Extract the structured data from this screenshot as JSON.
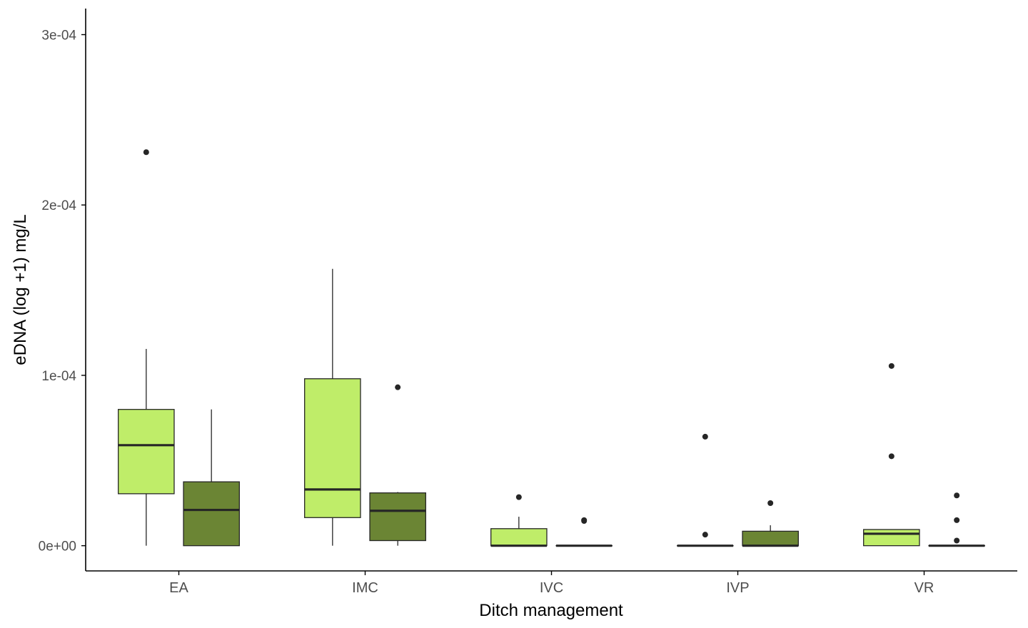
{
  "chart_data": {
    "type": "boxplot",
    "xlabel": "Ditch management",
    "ylabel": "eDNA  (log +1) mg/L",
    "ylim": [
      -1.48e-05,
      0.0003153
    ],
    "y_ticks": [
      0,
      0.0001,
      0.0002,
      0.0003
    ],
    "y_tick_labels": [
      "0e+00",
      "1e-04",
      "2e-04",
      "3e-04"
    ],
    "categories": [
      "EA",
      "IMC",
      "IVC",
      "IVP",
      "VR"
    ],
    "grid": false,
    "legend": "none",
    "colors": {
      "light_fill": "#bfed69",
      "dark_fill": "#6b8534",
      "line": "#262626",
      "axis": "#000000"
    },
    "series": [
      {
        "fill": "#bfed69",
        "boxes": [
          {
            "category": "EA",
            "whisker_low": 0.0,
            "q1": 3.05e-05,
            "median": 5.9e-05,
            "q3": 8e-05,
            "whisker_high": 0.0001155,
            "outliers": [
              0.000231
            ]
          },
          {
            "category": "IMC",
            "whisker_low": 0.0,
            "q1": 1.65e-05,
            "median": 3.3e-05,
            "q3": 9.8e-05,
            "whisker_high": 0.0001625,
            "outliers": []
          },
          {
            "category": "IVC",
            "whisker_low": 0.0,
            "q1": 0.0,
            "median": 0.0,
            "q3": 1e-05,
            "whisker_high": 1.7e-05,
            "outliers": [
              2.85e-05
            ]
          },
          {
            "category": "IVP",
            "whisker_low": 0.0,
            "q1": 0.0,
            "median": 0.0,
            "q3": 0.0,
            "whisker_high": 0.0,
            "outliers": [
              6.4e-05,
              6.5e-06
            ]
          },
          {
            "category": "VR",
            "whisker_low": 0.0,
            "q1": 0.0,
            "median": 7e-06,
            "q3": 9.5e-06,
            "whisker_high": 9.5e-06,
            "outliers": [
              0.0001055,
              5.25e-05
            ]
          }
        ]
      },
      {
        "fill": "#6b8534",
        "boxes": [
          {
            "category": "EA",
            "whisker_low": 0.0,
            "q1": 0.0,
            "median": 2.1e-05,
            "q3": 3.75e-05,
            "whisker_high": 8e-05,
            "outliers": []
          },
          {
            "category": "IMC",
            "whisker_low": 0.0,
            "q1": 3e-06,
            "median": 2.05e-05,
            "q3": 3.1e-05,
            "whisker_high": 3.15e-05,
            "outliers": [
              9.3e-05
            ]
          },
          {
            "category": "IVC",
            "whisker_low": 0.0,
            "q1": 0.0,
            "median": 0.0,
            "q3": 0.0,
            "whisker_high": 0.0,
            "outliers": [
              1.5e-05,
              1.45e-05
            ]
          },
          {
            "category": "IVP",
            "whisker_low": 0.0,
            "q1": 0.0,
            "median": 0.0,
            "q3": 8.5e-06,
            "whisker_high": 1.2e-05,
            "outliers": [
              2.5e-05
            ]
          },
          {
            "category": "VR",
            "whisker_low": 0.0,
            "q1": 0.0,
            "median": 0.0,
            "q3": 0.0,
            "whisker_high": 0.0,
            "outliers": [
              2.95e-05,
              1.5e-05,
              3e-06
            ]
          }
        ]
      }
    ]
  }
}
